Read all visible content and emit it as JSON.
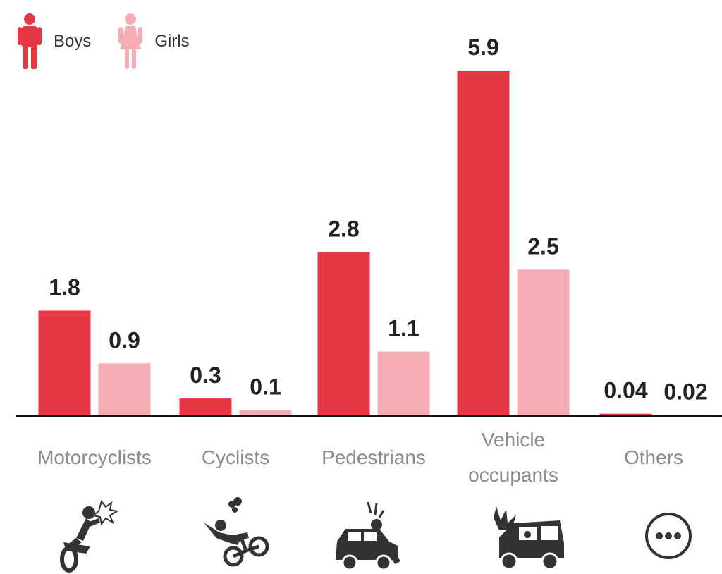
{
  "legend": {
    "boys_label": "Boys",
    "girls_label": "Girls",
    "boys_icon": "boy-figure-icon",
    "girls_icon": "girl-figure-icon"
  },
  "colors": {
    "boys": "#e63744",
    "girls": "#f5adb3",
    "axis": "#111111",
    "icons": "#333333"
  },
  "chart_data": {
    "type": "bar",
    "categories": [
      "Motorcyclists",
      "Cyclists",
      "Pedestrians",
      "Vehicle occupants",
      "Others"
    ],
    "category_lines": [
      [
        "Motorcyclists"
      ],
      [
        "Cyclists"
      ],
      [
        "Pedestrians"
      ],
      [
        "Vehicle",
        "occupants"
      ],
      [
        "Others"
      ]
    ],
    "series": [
      {
        "name": "Boys",
        "values": [
          1.8,
          0.3,
          2.8,
          5.9,
          0.04
        ],
        "labels": [
          "1.8",
          "0.3",
          "2.8",
          "5.9",
          "0.04"
        ]
      },
      {
        "name": "Girls",
        "values": [
          0.9,
          0.1,
          1.1,
          2.5,
          0.02
        ],
        "labels": [
          "0.9",
          "0.1",
          "1.1",
          "2.5",
          "0.02"
        ]
      }
    ],
    "category_icons": [
      "motorcycle-crash-icon",
      "bicycle-crash-icon",
      "pedestrian-hit-by-car-icon",
      "car-crash-icon",
      "more-ellipsis-icon"
    ],
    "ylim": [
      0,
      5.9
    ],
    "grid": false,
    "legend_position": "top-left"
  }
}
